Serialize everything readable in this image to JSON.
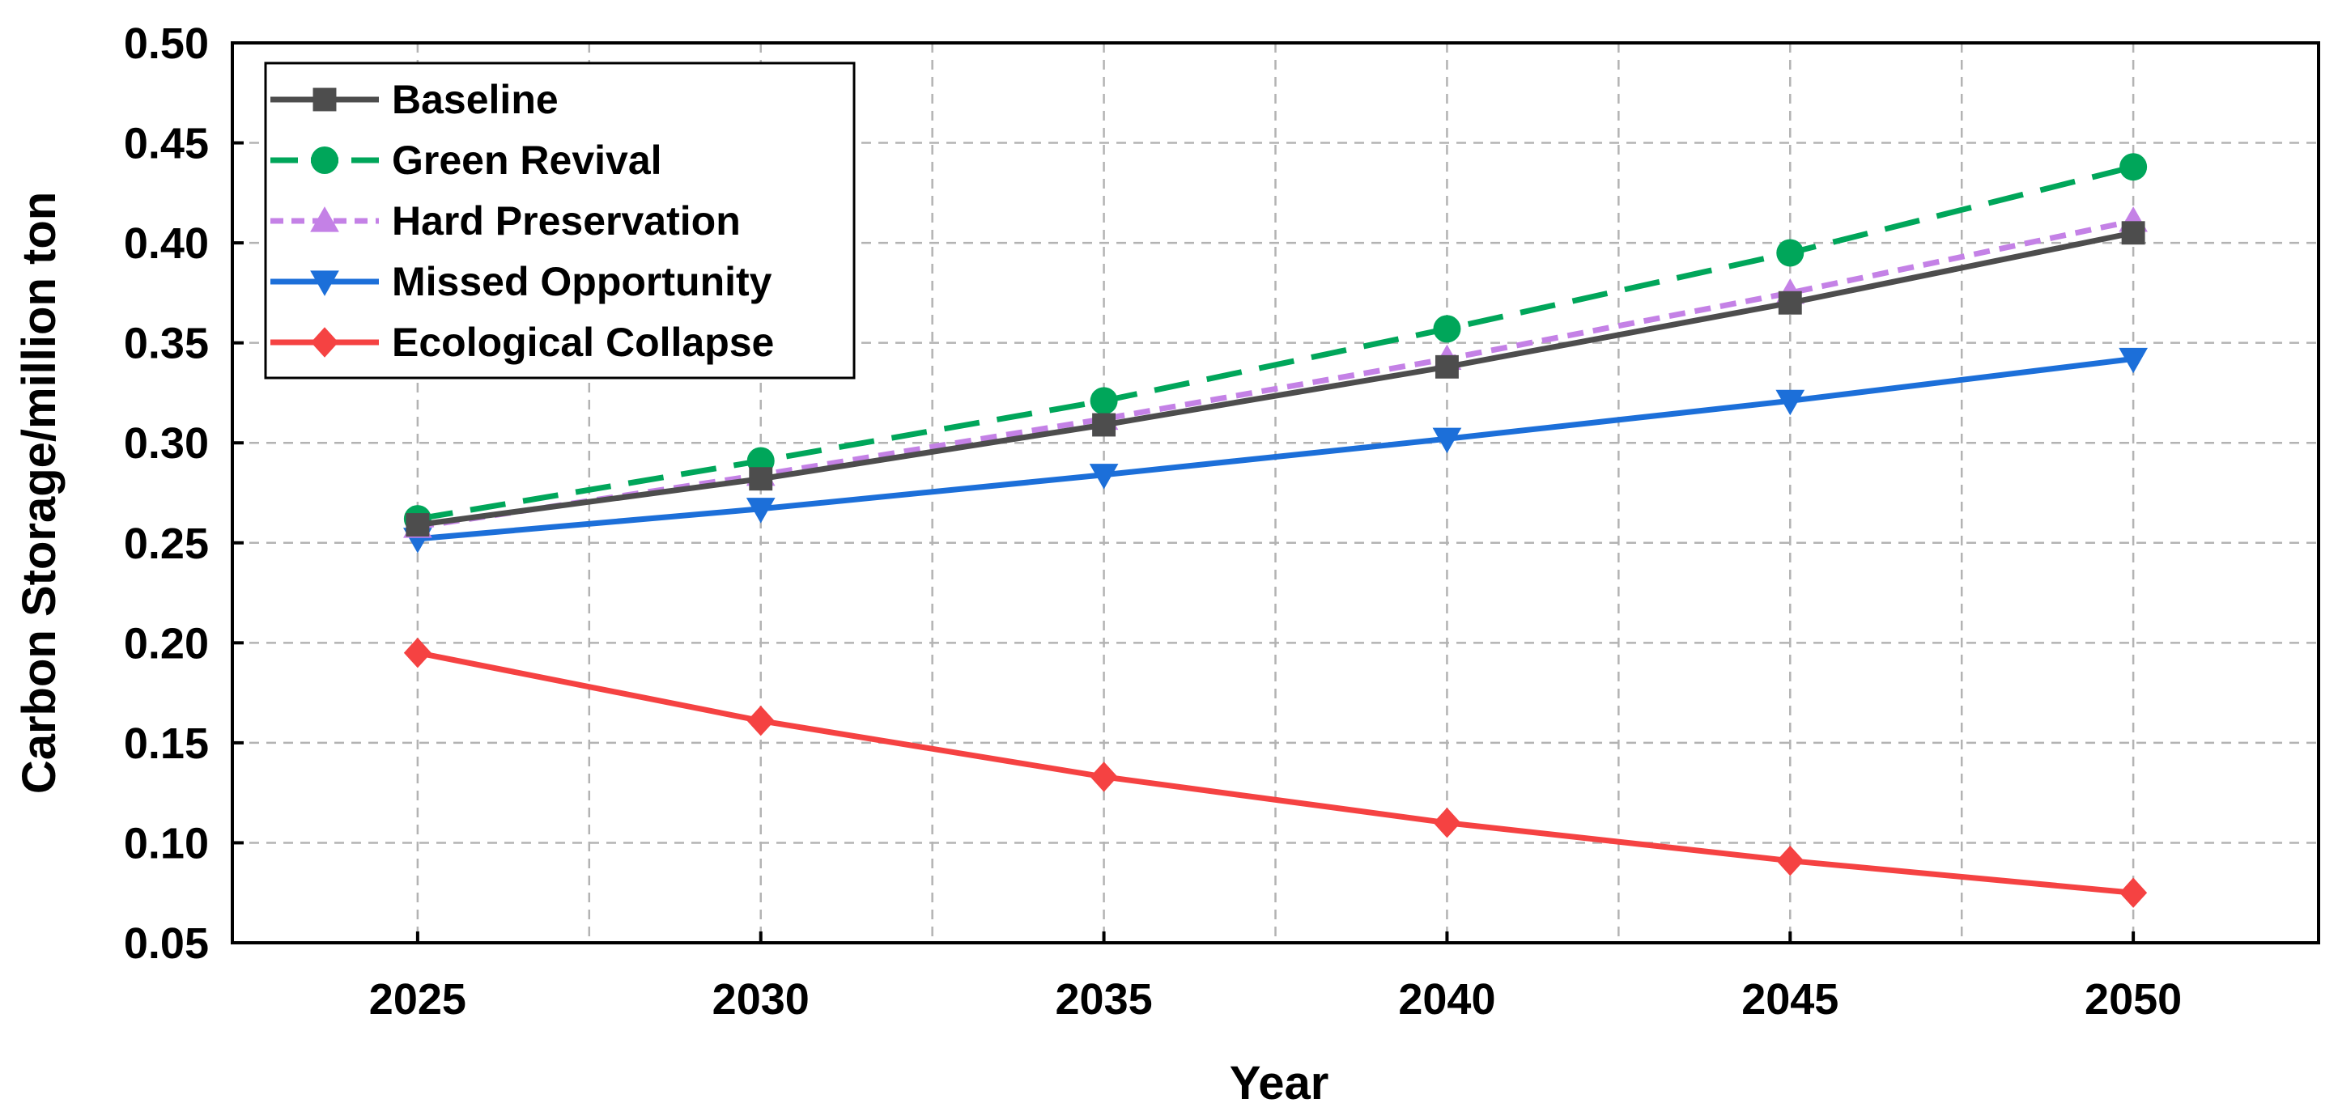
{
  "chart_data": {
    "type": "line",
    "title": "",
    "xlabel": "Year",
    "ylabel": "Carbon Storage/million ton",
    "x": [
      2025,
      2030,
      2035,
      2040,
      2045,
      2050
    ],
    "xlim": [
      2022.3,
      2052.7
    ],
    "ylim": [
      0.05,
      0.5
    ],
    "x_ticks": [
      "2025",
      "2030",
      "2035",
      "2040",
      "2045",
      "2050"
    ],
    "y_ticks": [
      "0.05",
      "0.10",
      "0.15",
      "0.20",
      "0.25",
      "0.30",
      "0.35",
      "0.40",
      "0.45",
      "0.50"
    ],
    "grid": true,
    "legend_position": "top-left",
    "series": [
      {
        "name": "Baseline",
        "values": [
          0.259,
          0.282,
          0.309,
          0.338,
          0.37,
          0.405
        ],
        "color": "#4d4d4d",
        "marker": "square",
        "line_style": "solid"
      },
      {
        "name": "Green Revival",
        "values": [
          0.262,
          0.291,
          0.321,
          0.357,
          0.395,
          0.438
        ],
        "color": "#00a65a",
        "marker": "circle",
        "line_style": "dashed"
      },
      {
        "name": "Hard Preservation",
        "values": [
          0.258,
          0.284,
          0.312,
          0.342,
          0.375,
          0.411
        ],
        "color": "#c481e6",
        "marker": "triangle-up",
        "line_style": "dotted"
      },
      {
        "name": "Missed Opportunity",
        "values": [
          0.252,
          0.267,
          0.284,
          0.302,
          0.321,
          0.342
        ],
        "color": "#1c6fd9",
        "marker": "triangle-down",
        "line_style": "solid"
      },
      {
        "name": "Ecological Collapse",
        "values": [
          0.195,
          0.161,
          0.133,
          0.11,
          0.091,
          0.075
        ],
        "color": "#f54242",
        "marker": "diamond",
        "line_style": "solid"
      }
    ]
  }
}
